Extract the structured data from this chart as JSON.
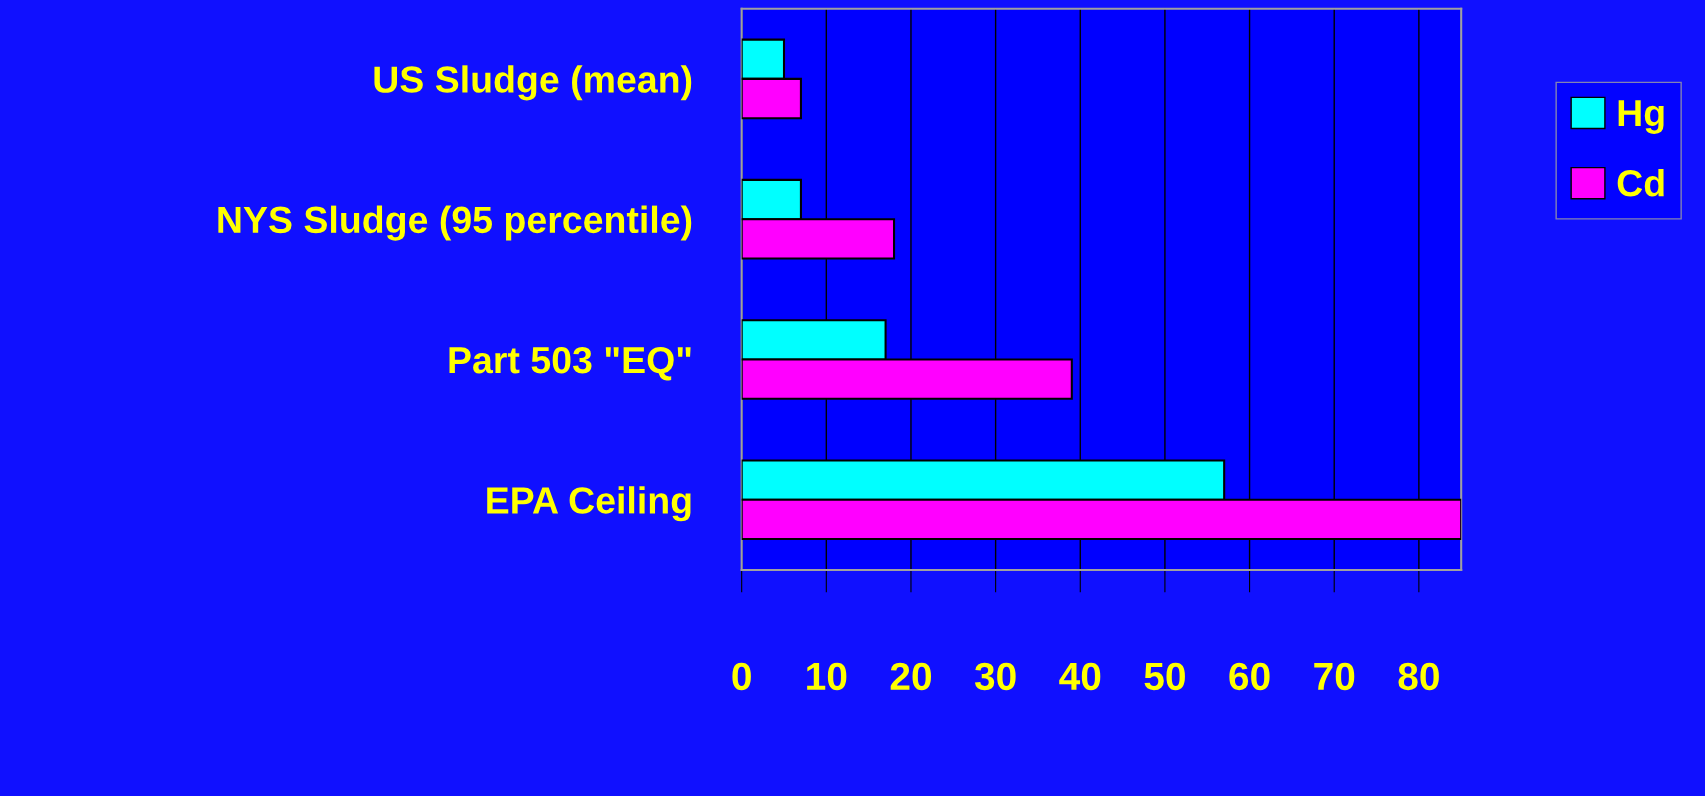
{
  "chart_data": {
    "type": "bar",
    "orientation": "horizontal",
    "categories": [
      "US Sludge (mean)",
      "NYS Sludge (95 percentile)",
      "Part 503 \"EQ\"",
      "EPA Ceiling"
    ],
    "series": [
      {
        "name": "Hg",
        "color": "#00ffff",
        "values": [
          5,
          7,
          17,
          57
        ]
      },
      {
        "name": "Cd",
        "color": "#ff00ff",
        "values": [
          7,
          18,
          39,
          85
        ]
      }
    ],
    "xlim": [
      0,
      85
    ],
    "xticks": [
      0,
      10,
      20,
      30,
      40,
      50,
      60,
      70,
      80
    ],
    "grid": "x",
    "legend": "top right"
  }
}
